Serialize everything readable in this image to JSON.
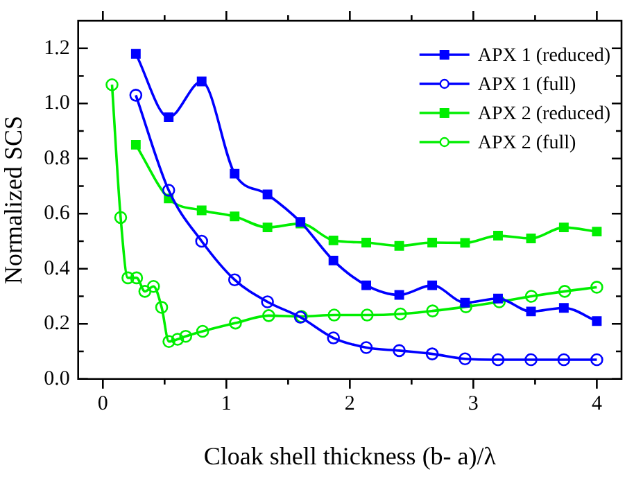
{
  "chart_data": {
    "type": "line",
    "xlabel": "Cloak shell thickness (b- a)/λ",
    "ylabel": "Normalized SCS",
    "xlim": [
      -0.2,
      4.2
    ],
    "ylim": [
      0,
      1.3
    ],
    "xticks": [
      0,
      {
        "value": 0.5,
        "label": null
      },
      1,
      {
        "value": 1.5,
        "label": null
      },
      2,
      {
        "value": 2.5,
        "label": null
      },
      3,
      {
        "value": 3.5,
        "label": null
      },
      4
    ],
    "yticks": [
      {
        "value": 0,
        "label": "0.0"
      },
      {
        "value": 0.1,
        "label": null
      },
      {
        "value": 0.2,
        "label": "0.2"
      },
      {
        "value": 0.3,
        "label": null
      },
      {
        "value": 0.4,
        "label": "0.4"
      },
      {
        "value": 0.5,
        "label": null
      },
      {
        "value": 0.6,
        "label": "0.6"
      },
      {
        "value": 0.7,
        "label": null
      },
      {
        "value": 0.8,
        "label": "0.8"
      },
      {
        "value": 0.9,
        "label": null
      },
      {
        "value": 1.0,
        "label": "1.0"
      },
      {
        "value": 1.1,
        "label": null
      },
      {
        "value": 1.2,
        "label": "1.2"
      }
    ],
    "grid": false,
    "legend": "top right",
    "line_style": "solid",
    "series": [
      {
        "name": "APX 1 (reduced)",
        "color": "#0000ff",
        "marker": "square",
        "x": [
          0.267,
          0.533,
          0.8,
          1.067,
          1.333,
          1.6,
          1.867,
          2.133,
          2.4,
          2.667,
          2.933,
          3.2,
          3.467,
          3.733,
          4.0
        ],
        "values": [
          1.18,
          0.95,
          1.08,
          0.745,
          0.67,
          0.57,
          0.43,
          0.34,
          0.305,
          0.34,
          0.277,
          0.292,
          0.245,
          0.258,
          0.21
        ]
      },
      {
        "name": "APX 1 (full)",
        "color": "#0000ff",
        "marker": "circle",
        "x": [
          0.267,
          0.533,
          0.8,
          1.067,
          1.333,
          1.6,
          1.867,
          2.133,
          2.4,
          2.667,
          2.933,
          3.2,
          3.467,
          3.733,
          4.0
        ],
        "values": [
          1.03,
          0.685,
          0.5,
          0.36,
          0.28,
          0.224,
          0.149,
          0.114,
          0.103,
          0.091,
          0.073,
          0.07,
          0.07,
          0.07,
          0.07
        ]
      },
      {
        "name": "APX 2 (reduced)",
        "color": "#00ee00",
        "marker": "square",
        "x": [
          0.267,
          0.533,
          0.8,
          1.067,
          1.333,
          1.6,
          1.867,
          2.133,
          2.4,
          2.667,
          2.933,
          3.2,
          3.467,
          3.733,
          4.0
        ],
        "values": [
          0.85,
          0.655,
          0.612,
          0.59,
          0.55,
          0.564,
          0.503,
          0.495,
          0.483,
          0.495,
          0.494,
          0.52,
          0.51,
          0.55,
          0.535
        ]
      },
      {
        "name": "APX 2 (full)",
        "color": "#00ee00",
        "marker": "circle",
        "x": [
          0.074,
          0.144,
          0.203,
          0.273,
          0.34,
          0.41,
          0.476,
          0.535,
          0.605,
          0.671,
          0.808,
          1.074,
          1.343,
          1.608,
          1.873,
          2.14,
          2.41,
          2.67,
          2.94,
          3.21,
          3.47,
          3.74,
          4.0
        ],
        "values": [
          1.068,
          0.586,
          0.367,
          0.367,
          0.318,
          0.336,
          0.26,
          0.136,
          0.144,
          0.155,
          0.173,
          0.203,
          0.23,
          0.227,
          0.232,
          0.232,
          0.236,
          0.247,
          0.262,
          0.28,
          0.3,
          0.318,
          0.333
        ]
      }
    ]
  }
}
